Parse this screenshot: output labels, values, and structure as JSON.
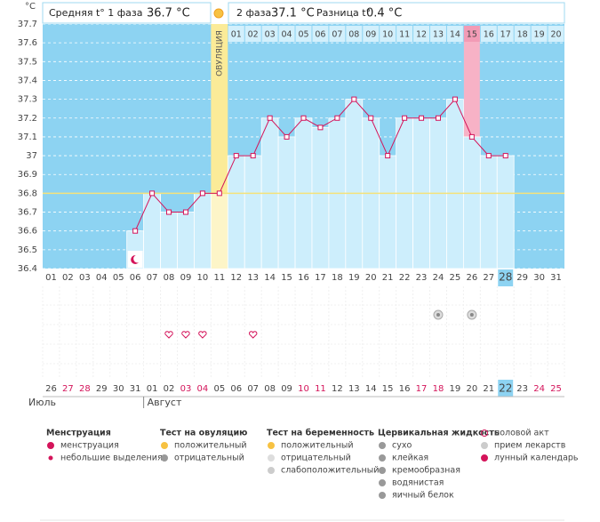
{
  "header": {
    "phase1_label": "Средняя t° 1 фаза",
    "phase1_value": "36.7 °C",
    "phase2_label": "2 фаза",
    "phase2_value": "37.1 °C",
    "diff_label": "Разница t°",
    "diff_value": "0.4 °C"
  },
  "chart_data": {
    "type": "line",
    "y_label": "°C",
    "categories": [
      "01",
      "02",
      "03",
      "04",
      "05",
      "06",
      "07",
      "08",
      "09",
      "10",
      "11",
      "12",
      "13",
      "14",
      "15",
      "16",
      "17",
      "18",
      "19",
      "20",
      "21",
      "22",
      "23",
      "24",
      "25",
      "26",
      "27",
      "28",
      "29",
      "30",
      "31"
    ],
    "values": [
      null,
      null,
      null,
      null,
      null,
      36.6,
      36.8,
      36.7,
      36.7,
      36.8,
      36.8,
      37,
      37,
      37.2,
      37.1,
      37.2,
      37.15,
      37.2,
      37.3,
      37.2,
      37,
      37.2,
      37.2,
      37.2,
      37.3,
      37.1,
      37,
      37,
      null,
      null,
      null
    ],
    "color": "#d4145a",
    "ylim": [
      36.4,
      37.7
    ],
    "yticks": [
      36.4,
      36.5,
      36.6,
      36.7,
      36.8,
      36.9,
      37,
      37.1,
      37.2,
      37.3,
      37.4,
      37.5,
      37.6,
      37.7
    ],
    "grid": true,
    "coverline": 36.8,
    "ovulation": {
      "label": "ОВУЛЯЦИЯ",
      "day": 11
    },
    "phase2_labels": [
      "01",
      "02",
      "03",
      "04",
      "05",
      "06",
      "07",
      "08",
      "09",
      "10",
      "11",
      "12",
      "13",
      "14",
      "15",
      "16",
      "17",
      "18",
      "19",
      "20"
    ],
    "marked_day": 26,
    "today_day": 28,
    "moon_day": 6,
    "intercourse_days": [
      8,
      9,
      10,
      13
    ],
    "pregnancy_test_days": [
      24,
      26
    ],
    "dates": [
      "26",
      "27",
      "28",
      "29",
      "30",
      "31",
      "01",
      "02",
      "03",
      "04",
      "05",
      "06",
      "07",
      "08",
      "09",
      "10",
      "11",
      "12",
      "13",
      "14",
      "15",
      "16",
      "17",
      "18",
      "19",
      "20",
      "21",
      "22",
      "23",
      "24",
      "25"
    ],
    "weekend": [
      false,
      true,
      true,
      false,
      false,
      false,
      false,
      false,
      true,
      true,
      false,
      false,
      false,
      false,
      false,
      true,
      true,
      false,
      false,
      false,
      false,
      false,
      true,
      true,
      false,
      false,
      false,
      false,
      false,
      true,
      true
    ],
    "months": [
      {
        "label": "Июль",
        "day": 1
      },
      {
        "label": "Август",
        "day": 7
      }
    ]
  },
  "legend": [
    {
      "title": "Менструация",
      "items": [
        "менструация",
        "небольшие выделения"
      ]
    },
    {
      "title": "Тест на овуляцию",
      "items": [
        "положительный",
        "отрицательный"
      ]
    },
    {
      "title": "Тест на беременность",
      "items": [
        "положительный",
        "отрицательный",
        "слабоположительный"
      ]
    },
    {
      "title": "Цервикальная жидкость",
      "items": [
        "сухо",
        "клейкая",
        "кремообразная",
        "водянистая",
        "яичный белок"
      ]
    },
    {
      "items": [
        "половой акт",
        "прием лекарств",
        "лунный календарь"
      ]
    }
  ]
}
